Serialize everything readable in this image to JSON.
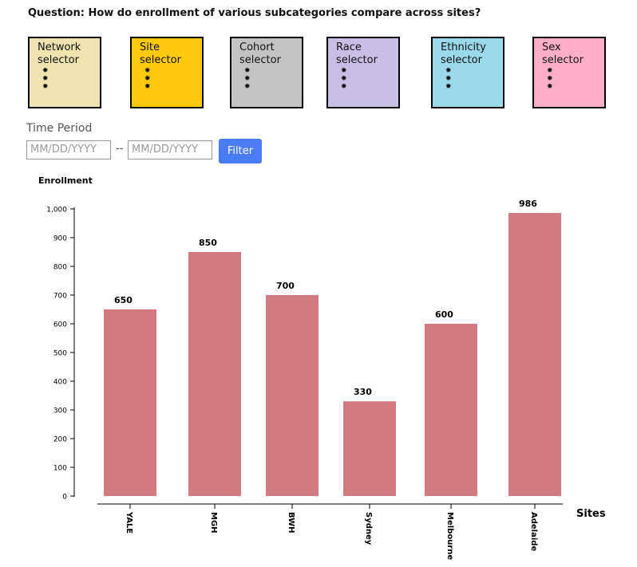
{
  "question": "Question: How do enrollment of various subcategories compare across sites?",
  "selectors": [
    {
      "label": "Network selector",
      "color": "#efe4b0"
    },
    {
      "label": "Site selector",
      "color": "#ffc90e"
    },
    {
      "label": "Cohort selector",
      "color": "#c3c3c3"
    },
    {
      "label": "Race selector",
      "color": "#c8bfe7"
    },
    {
      "label": "Ethnicity selector",
      "color": "#99d9ea"
    },
    {
      "label": "Sex selector",
      "color": "#ffaec9"
    }
  ],
  "time_period": {
    "label": "Time Period",
    "start_placeholder": "MM/DD/YYYY",
    "separator": "--",
    "end_placeholder": "MM/DD/YYYY",
    "button": "Filter"
  },
  "chart_data": {
    "type": "bar",
    "y_label": "Enrollment",
    "x_label": "Sites",
    "categories": [
      "YALE",
      "MGH",
      "BWH",
      "Sydney",
      "Melbourne",
      "Adelaide"
    ],
    "values": [
      650,
      850,
      700,
      330,
      600,
      986
    ],
    "color": "#d17b80",
    "ylim": [
      0,
      1000
    ],
    "yticks": [
      0,
      100,
      200,
      300,
      400,
      500,
      600,
      700,
      800,
      900,
      {
        "value": 1000,
        "label": "1,000"
      }
    ]
  }
}
